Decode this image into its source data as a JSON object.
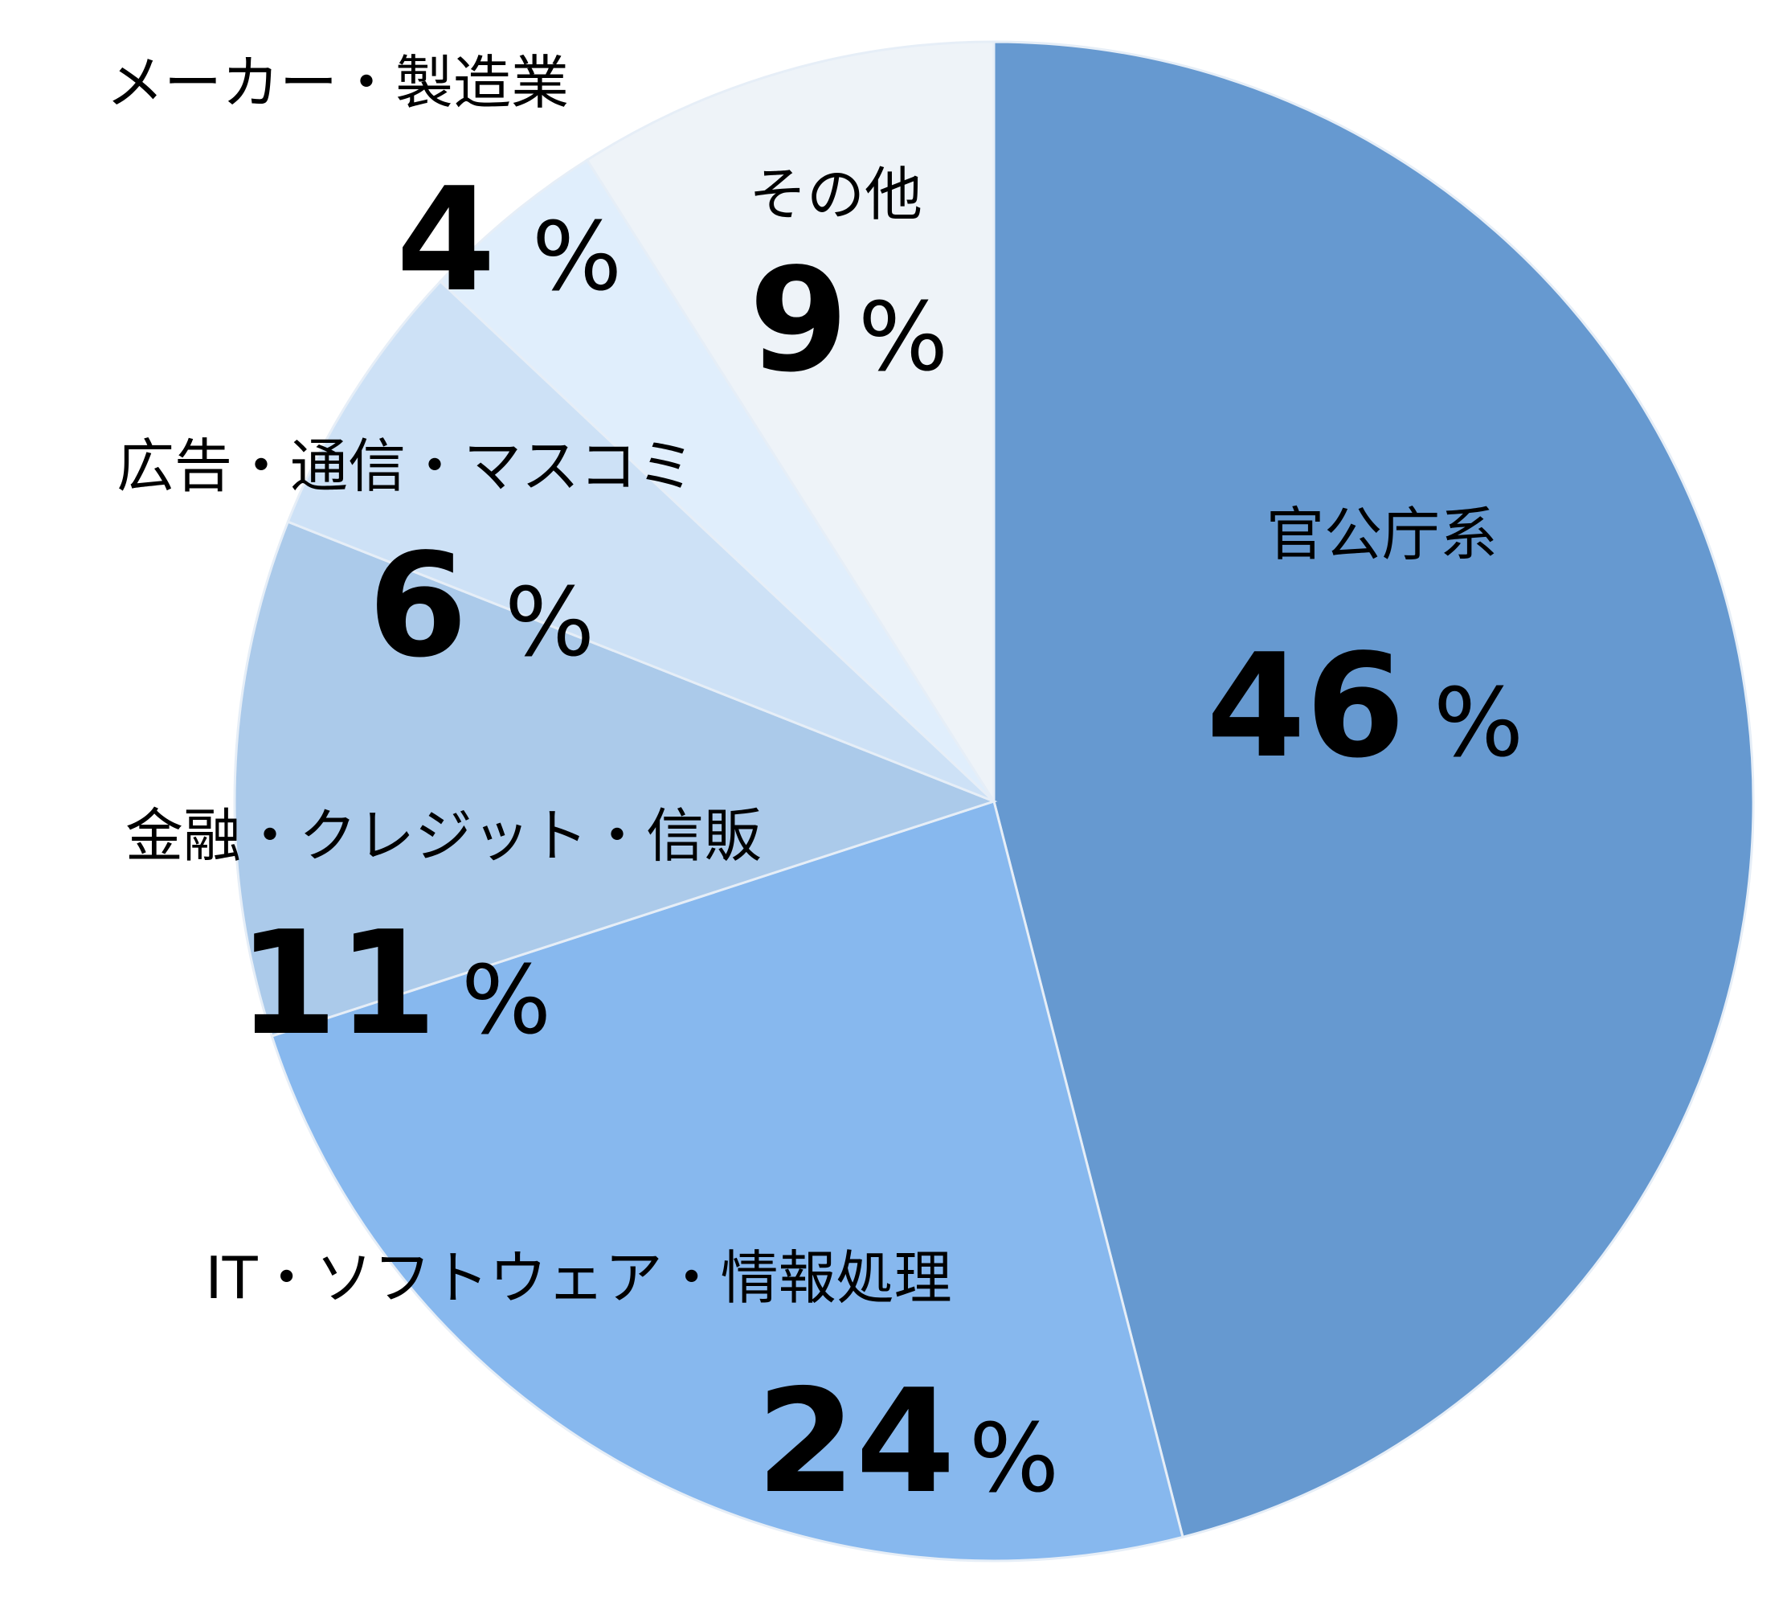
{
  "chart_data": {
    "type": "pie",
    "title": "",
    "unit_symbol": "%",
    "start_angle_deg": 0,
    "direction": "clockwise",
    "slices": [
      {
        "label": "官公庁系",
        "value": 46,
        "value_text": "46",
        "color": "#6699d0"
      },
      {
        "label": "IT・ソフトウェア・情報処理",
        "value": 24,
        "value_text": "24",
        "color": "#87b8ee"
      },
      {
        "label": "金融・クレジット・信販",
        "value": 11,
        "value_text": "11",
        "color": "#abcaea"
      },
      {
        "label": "広告・通信・マスコミ",
        "value": 6,
        "value_text": "6",
        "color": "#cde1f6"
      },
      {
        "label": "メーカー・製造業",
        "value": 4,
        "value_text": "4",
        "color": "#e0eefc"
      },
      {
        "label": "その他",
        "value": 9,
        "value_text": "9",
        "color": "#eef3f8"
      }
    ]
  }
}
